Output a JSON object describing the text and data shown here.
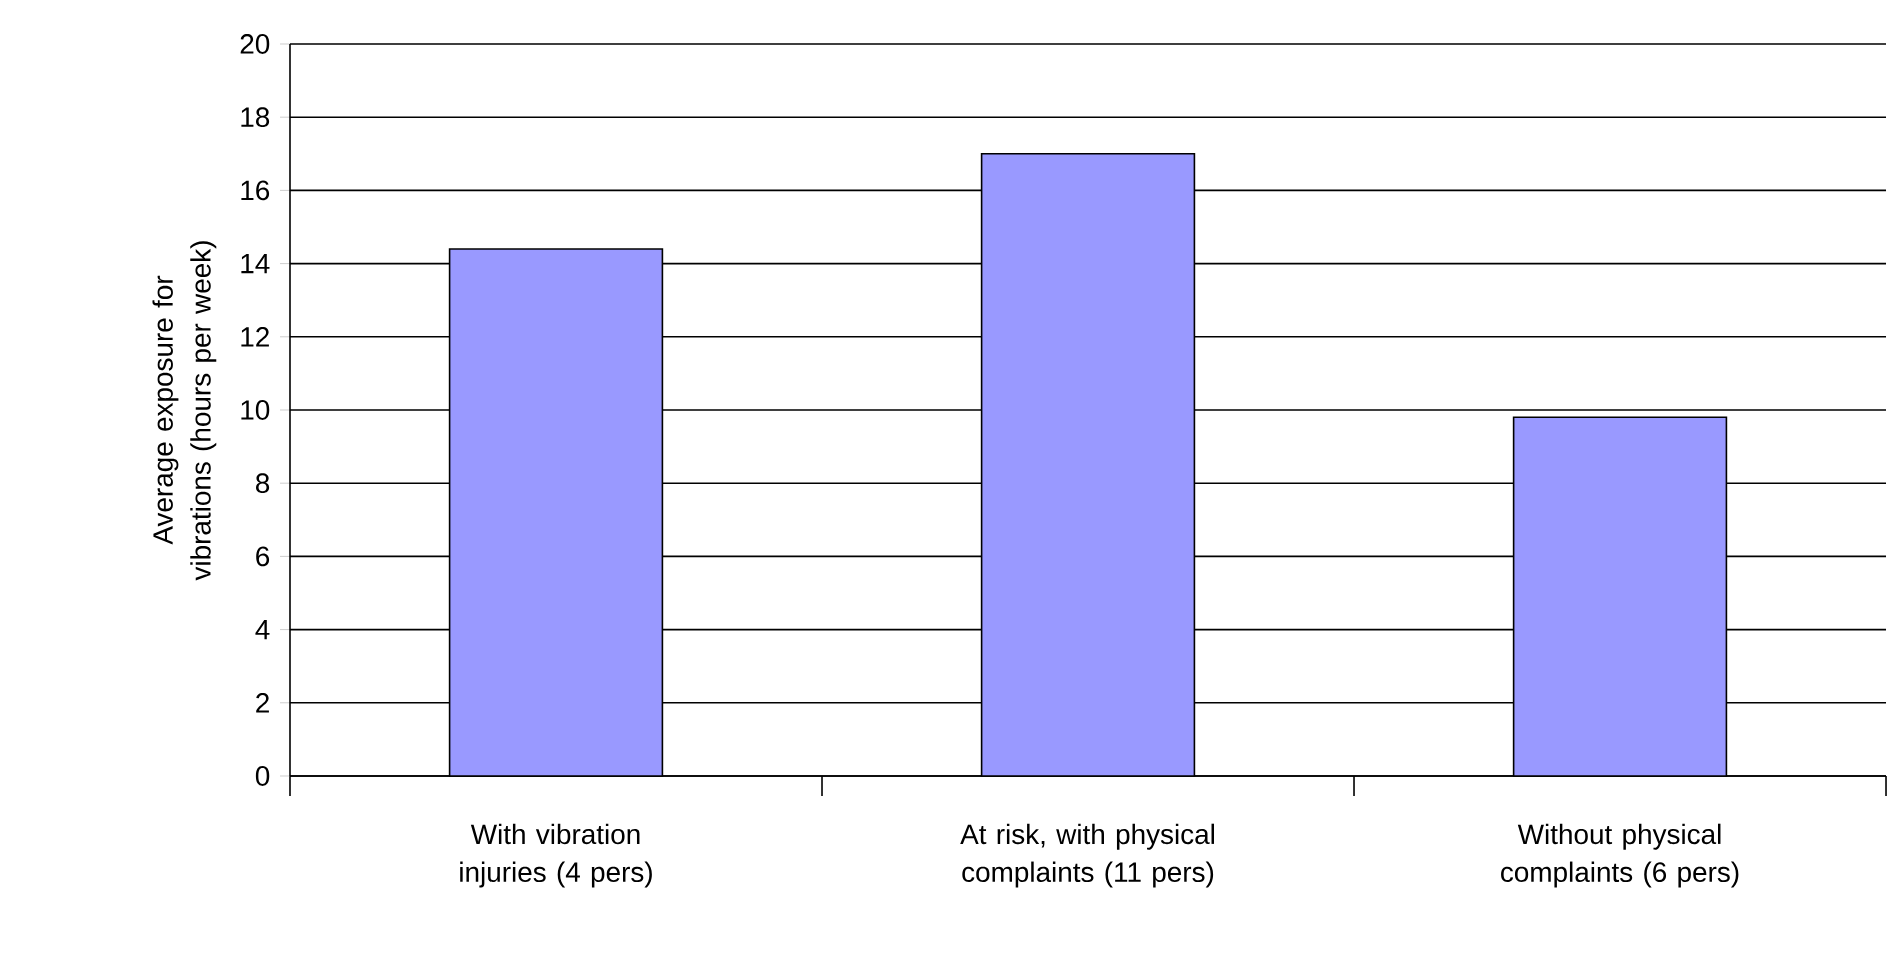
{
  "chart_data": {
    "type": "bar",
    "ylabel": "Average exposure for vibrations (hours per week)",
    "categories": [
      "With vibration injuries (4 pers)",
      "At risk, with physical complaints (11 pers)",
      "Without physical complaints (6 pers)"
    ],
    "values": [
      14.4,
      17.0,
      9.8
    ],
    "color": "#9999ff",
    "ylim": [
      0,
      20
    ],
    "yticks": [
      0,
      2,
      4,
      6,
      8,
      10,
      12,
      14,
      16,
      18,
      20
    ],
    "grid": "y"
  }
}
